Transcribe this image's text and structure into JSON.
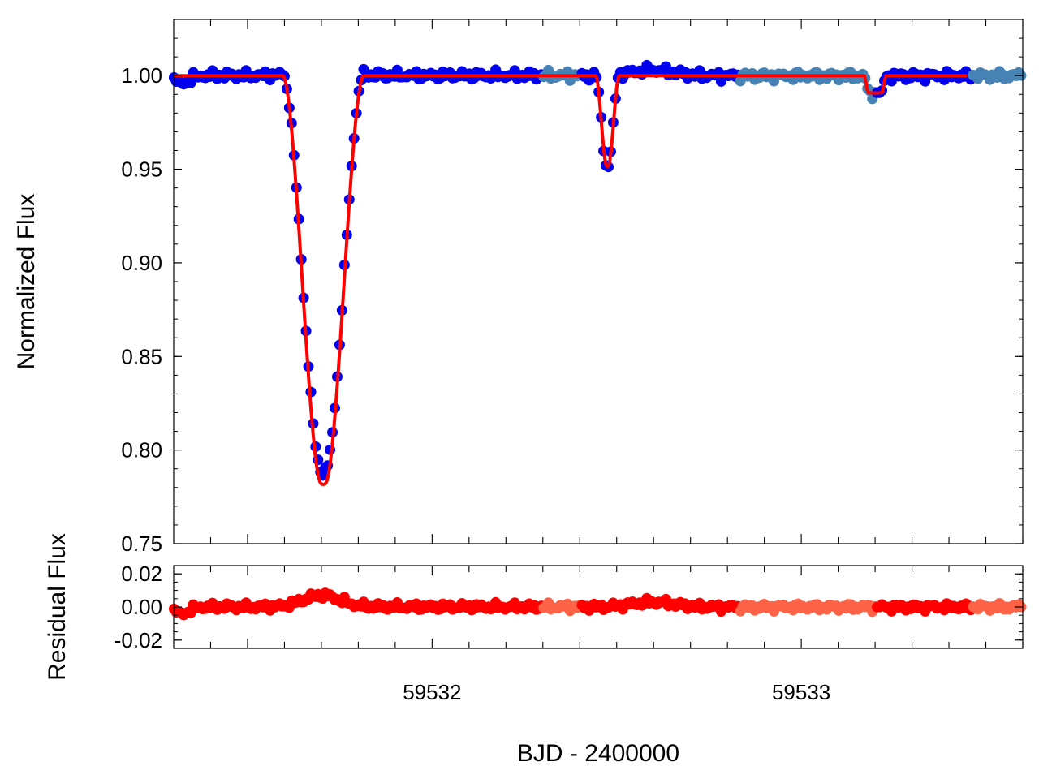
{
  "chart_data": [
    {
      "type": "scatter",
      "title": "",
      "xlabel": "",
      "ylabel": "Normalized Flux",
      "xlim": [
        59531.3,
        59533.6
      ],
      "ylim": [
        0.75,
        1.03
      ],
      "yticks": [
        0.75,
        0.8,
        0.85,
        0.9,
        0.95,
        1.0
      ],
      "ytick_labels": [
        "0.75",
        "0.80",
        "0.85",
        "0.90",
        "0.95",
        "1.00"
      ],
      "grid": false,
      "colors": {
        "data_dark": "#0000ee",
        "data_light": "#4682b4",
        "model": "#ff0000"
      },
      "series": [
        {
          "kind": "points",
          "color": "blue",
          "segments": [
            [
              59531.3,
              59531.62
            ],
            [
              59531.62,
              59532.3
            ],
            [
              59532.4,
              59532.83
            ],
            [
              59533.2,
              59533.46
            ]
          ]
        },
        {
          "kind": "points",
          "color": "steelblue",
          "segments": [
            [
              59532.3,
              59532.4
            ],
            [
              59532.83,
              59533.2
            ],
            [
              59533.46,
              59533.6
            ]
          ]
        },
        {
          "kind": "line",
          "color": "red"
        }
      ],
      "eclipses": [
        {
          "t0": 59531.705,
          "depth": 0.212,
          "half_width": 0.11,
          "ingress": 0.105
        },
        {
          "t0": 59532.475,
          "depth": 0.047,
          "half_width": 0.032,
          "ingress": 0.03
        },
        {
          "t0": 59533.2,
          "depth": 0.009,
          "half_width": 0.03,
          "ingress": 0.012
        }
      ]
    },
    {
      "type": "scatter",
      "title": "",
      "xlabel": "BJD - 2400000",
      "ylabel": "Residual Flux",
      "xlim": [
        59531.3,
        59533.6
      ],
      "ylim": [
        -0.025,
        0.025
      ],
      "yticks": [
        -0.02,
        0.0,
        0.02
      ],
      "ytick_labels": [
        "-0.02",
        "0.00",
        "0.02"
      ],
      "xticks": [
        59532,
        59533
      ],
      "xtick_labels": [
        "59532",
        "59533"
      ],
      "grid": false,
      "colors": {
        "resid_dark": "#ff0000",
        "resid_light": "#ff6347"
      },
      "series": [
        {
          "kind": "points",
          "color": "red",
          "segments": [
            [
              59531.3,
              59532.3
            ],
            [
              59532.4,
              59532.83
            ],
            [
              59533.2,
              59533.46
            ]
          ]
        },
        {
          "kind": "points",
          "color": "tomato",
          "segments": [
            [
              59532.3,
              59532.4
            ],
            [
              59532.83,
              59533.2
            ],
            [
              59533.46,
              59533.6
            ]
          ]
        }
      ]
    }
  ]
}
